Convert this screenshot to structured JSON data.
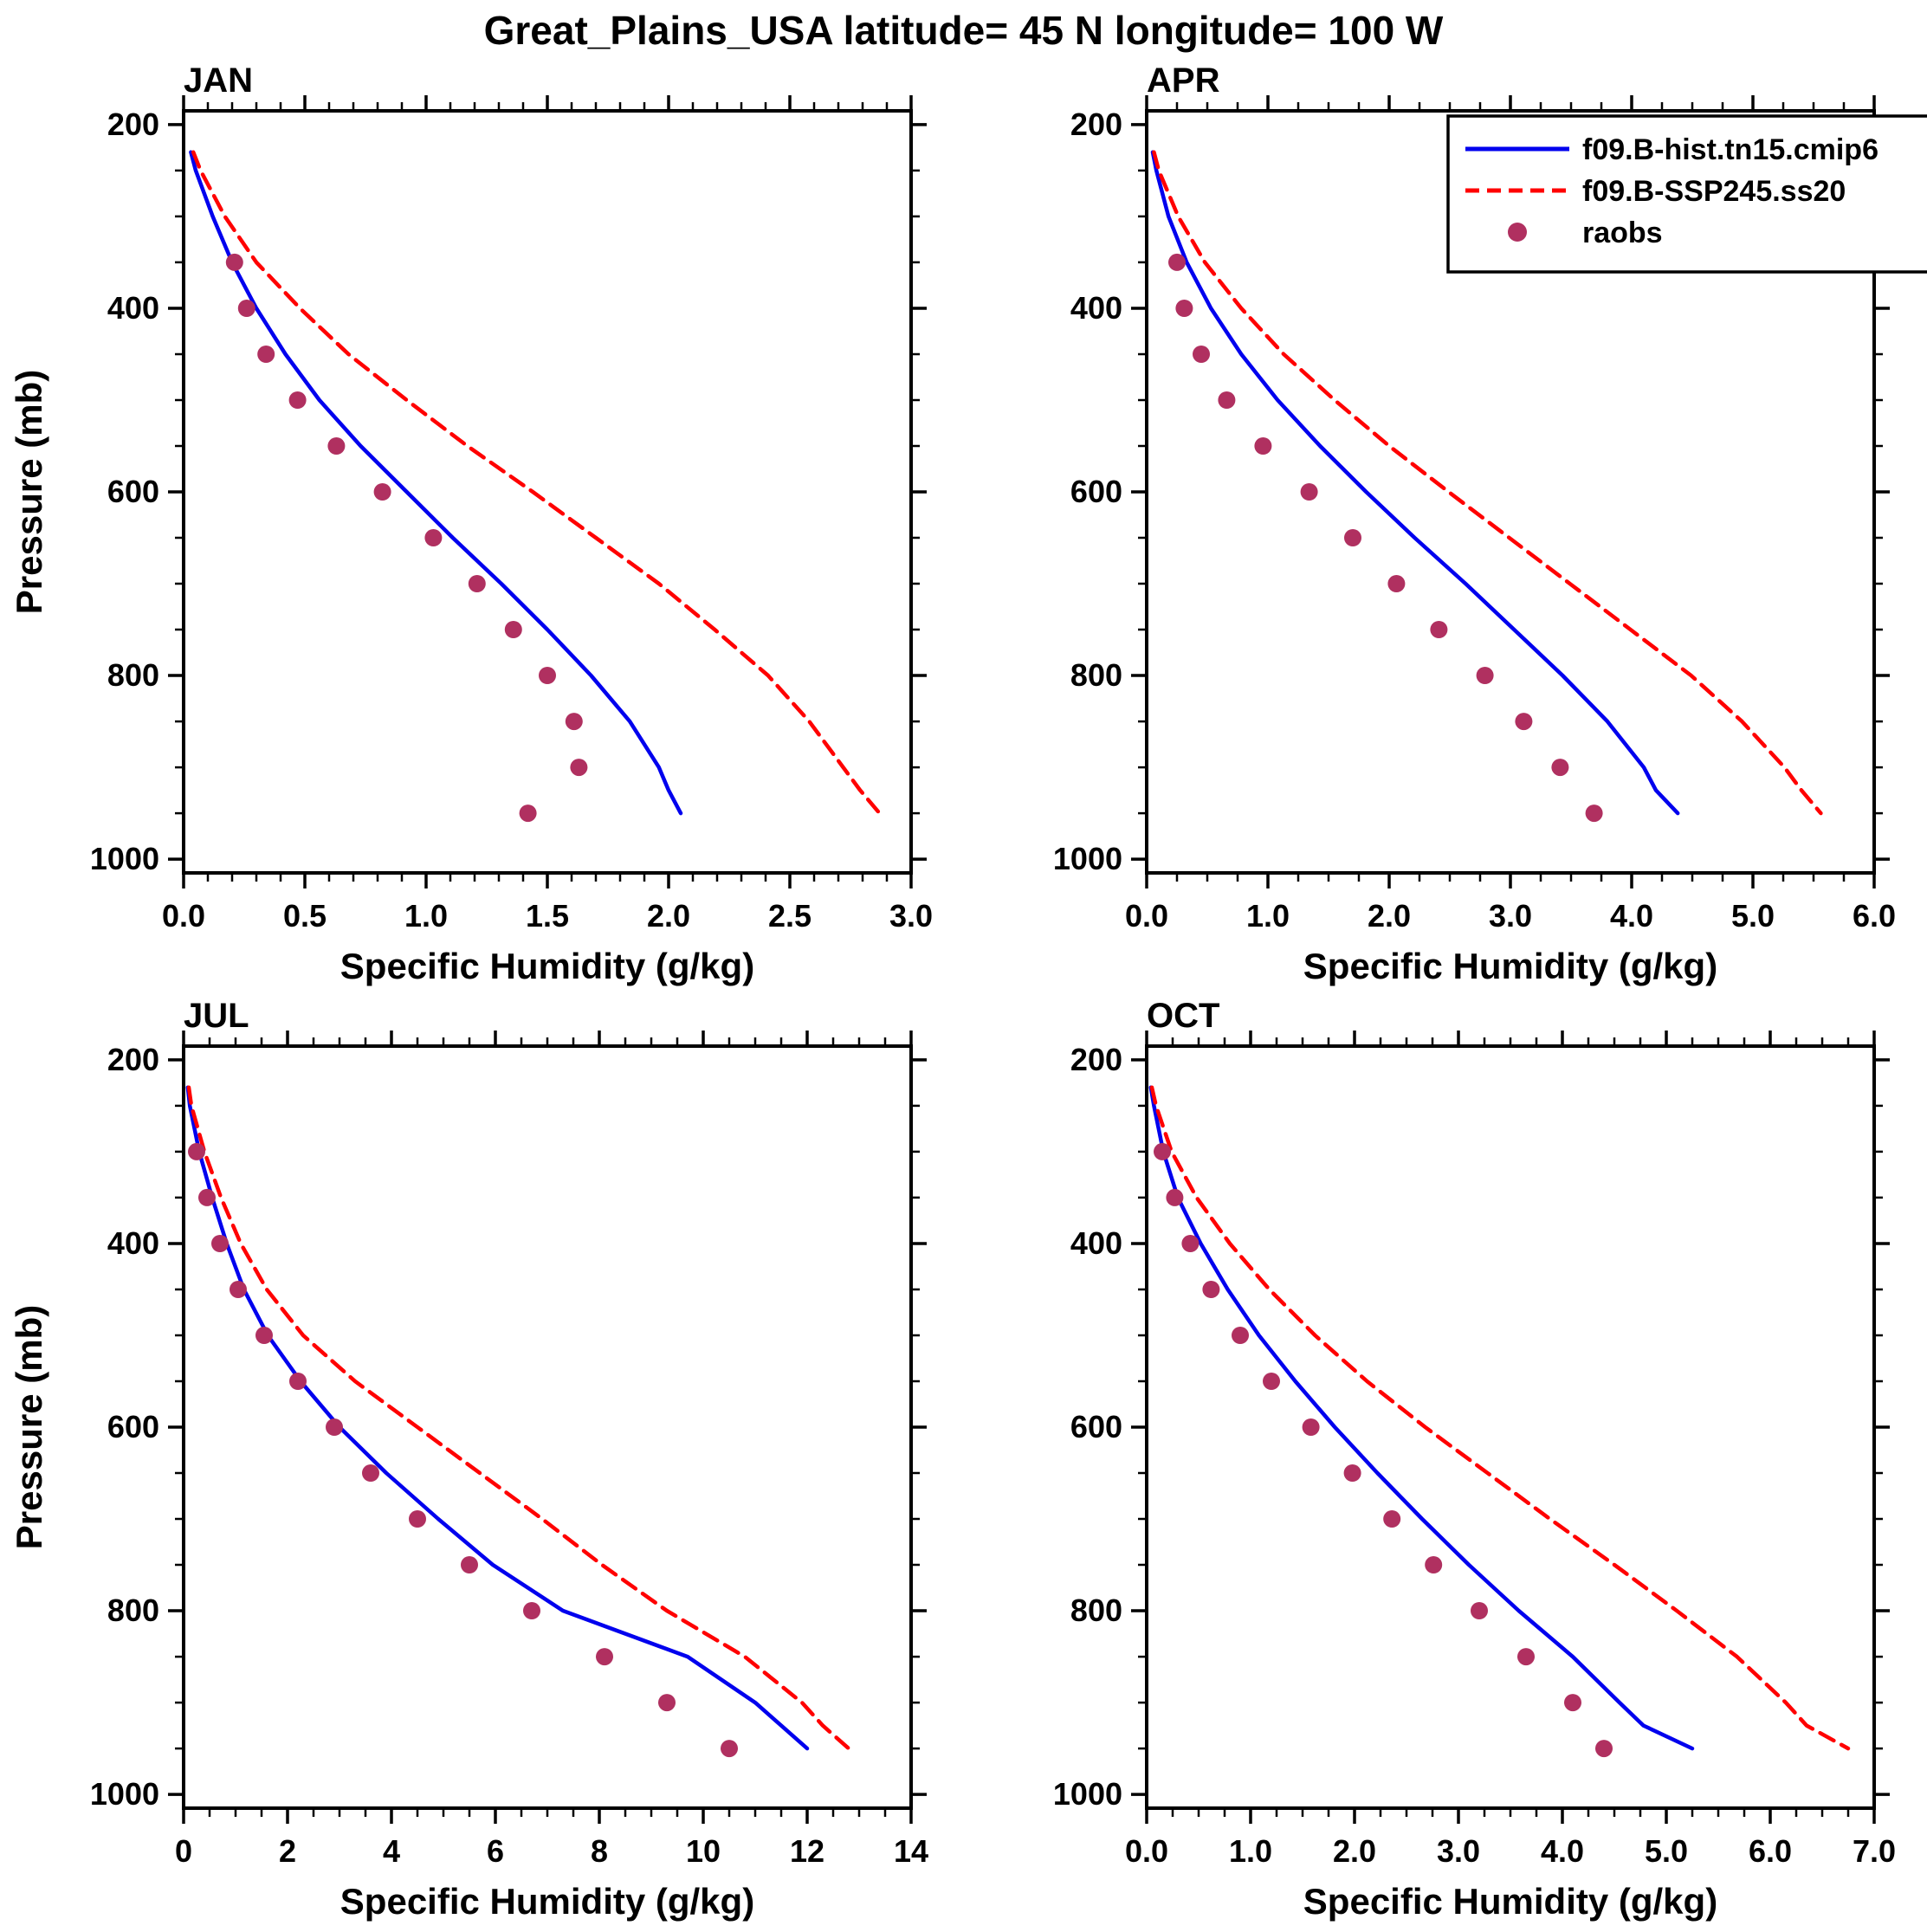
{
  "title": "Great_Plains_USA  latitude= 45 N longitude= 100 W",
  "colors": {
    "hist": "#0000ee",
    "ssp": "#ff0000",
    "raobs": "#b03060",
    "frame": "#000000"
  },
  "legend": {
    "entries": [
      {
        "label": "f09.B-hist.tn15.cmip6",
        "type": "line",
        "style": "solid",
        "color_key": "hist"
      },
      {
        "label": "f09.B-SSP245.ss20",
        "type": "line",
        "style": "dashed",
        "color_key": "ssp"
      },
      {
        "label": "raobs",
        "type": "dot",
        "color_key": "raobs"
      }
    ]
  },
  "chart_data": [
    {
      "type": "line",
      "title": "JAN",
      "xlabel": "Specific Humidity (g/kg)",
      "ylabel": "Pressure (mb)",
      "xlim": [
        0.0,
        3.0
      ],
      "xtick_step": 0.5,
      "xtick_decimals": 1,
      "xminor_step": 0.1,
      "ylim": [
        200,
        1000
      ],
      "ytick_step": 200,
      "ytick_decimals": 0,
      "yminor_step": 50,
      "show_ylabel": true,
      "show_legend": false,
      "pressure_levels": [
        230,
        250,
        300,
        350,
        400,
        450,
        500,
        550,
        600,
        650,
        700,
        750,
        800,
        850,
        900,
        925,
        950
      ],
      "series": [
        {
          "name": "f09.B-hist.tn15.cmip6",
          "style": "solid",
          "color_key": "hist",
          "values": [
            0.03,
            0.05,
            0.12,
            0.2,
            0.3,
            0.42,
            0.56,
            0.73,
            0.92,
            1.11,
            1.31,
            1.5,
            1.68,
            1.84,
            1.96,
            2.0,
            2.05
          ]
        },
        {
          "name": "f09.B-SSP245.ss20",
          "style": "dashed",
          "color_key": "ssp",
          "values": [
            0.04,
            0.07,
            0.17,
            0.3,
            0.48,
            0.68,
            0.92,
            1.17,
            1.44,
            1.7,
            1.96,
            2.19,
            2.41,
            2.58,
            2.72,
            2.79,
            2.87
          ]
        }
      ],
      "raobs": {
        "name": "raobs",
        "pressure": [
          350,
          400,
          450,
          500,
          550,
          600,
          650,
          700,
          750,
          800,
          850,
          900,
          950
        ],
        "values": [
          0.21,
          0.26,
          0.34,
          0.47,
          0.63,
          0.82,
          1.03,
          1.21,
          1.36,
          1.5,
          1.61,
          1.63,
          1.42
        ]
      }
    },
    {
      "type": "line",
      "title": "APR",
      "xlabel": "Specific Humidity (g/kg)",
      "ylabel": "Pressure (mb)",
      "xlim": [
        0.0,
        6.0
      ],
      "xtick_step": 1.0,
      "xtick_decimals": 1,
      "xminor_step": 0.25,
      "ylim": [
        200,
        1000
      ],
      "ytick_step": 200,
      "ytick_decimals": 0,
      "yminor_step": 50,
      "show_ylabel": false,
      "show_legend": true,
      "pressure_levels": [
        230,
        250,
        300,
        350,
        400,
        450,
        500,
        550,
        600,
        650,
        700,
        750,
        800,
        850,
        900,
        925,
        950
      ],
      "series": [
        {
          "name": "f09.B-hist.tn15.cmip6",
          "style": "solid",
          "color_key": "hist",
          "values": [
            0.05,
            0.08,
            0.18,
            0.33,
            0.53,
            0.78,
            1.08,
            1.43,
            1.81,
            2.21,
            2.63,
            3.03,
            3.43,
            3.8,
            4.1,
            4.2,
            4.38
          ]
        },
        {
          "name": "f09.B-SSP245.ss20",
          "style": "dashed",
          "color_key": "ssp",
          "values": [
            0.06,
            0.1,
            0.26,
            0.48,
            0.78,
            1.13,
            1.55,
            2.0,
            2.49,
            2.99,
            3.49,
            3.99,
            4.49,
            4.91,
            5.26,
            5.4,
            5.56
          ]
        }
      ],
      "raobs": {
        "name": "raobs",
        "pressure": [
          350,
          400,
          450,
          500,
          550,
          600,
          650,
          700,
          750,
          800,
          850,
          900,
          950
        ],
        "values": [
          0.25,
          0.31,
          0.45,
          0.66,
          0.96,
          1.34,
          1.7,
          2.06,
          2.41,
          2.79,
          3.11,
          3.41,
          3.69
        ]
      }
    },
    {
      "type": "line",
      "title": "JUL",
      "xlabel": "Specific Humidity (g/kg)",
      "ylabel": "Pressure (mb)",
      "xlim": [
        0,
        14
      ],
      "xtick_step": 2,
      "xtick_decimals": 0,
      "xminor_step": 0.5,
      "ylim": [
        200,
        1000
      ],
      "ytick_step": 200,
      "ytick_decimals": 0,
      "yminor_step": 50,
      "show_ylabel": true,
      "show_legend": false,
      "pressure_levels": [
        230,
        250,
        300,
        350,
        400,
        450,
        500,
        550,
        600,
        650,
        700,
        750,
        800,
        850,
        900,
        925,
        950
      ],
      "series": [
        {
          "name": "f09.B-hist.tn15.cmip6",
          "style": "solid",
          "color_key": "hist",
          "values": [
            0.08,
            0.12,
            0.3,
            0.55,
            0.83,
            1.16,
            1.62,
            2.25,
            3.0,
            3.9,
            4.9,
            5.95,
            7.3,
            9.7,
            11.0,
            11.5,
            12.0
          ]
        },
        {
          "name": "f09.B-SSP245.ss20",
          "style": "dashed",
          "color_key": "ssp",
          "values": [
            0.1,
            0.15,
            0.4,
            0.72,
            1.1,
            1.6,
            2.3,
            3.3,
            4.5,
            5.7,
            6.9,
            8.05,
            9.3,
            10.8,
            11.9,
            12.3,
            12.8
          ]
        }
      ],
      "raobs": {
        "name": "raobs",
        "pressure": [
          300,
          350,
          400,
          450,
          500,
          550,
          600,
          650,
          700,
          750,
          800,
          850,
          900,
          950
        ],
        "values": [
          0.25,
          0.45,
          0.7,
          1.05,
          1.55,
          2.2,
          2.9,
          3.6,
          4.5,
          5.5,
          6.7,
          8.1,
          9.3,
          10.5
        ]
      }
    },
    {
      "type": "line",
      "title": "OCT",
      "xlabel": "Specific Humidity (g/kg)",
      "ylabel": "Pressure (mb)",
      "xlim": [
        0.0,
        7.0
      ],
      "xtick_step": 1.0,
      "xtick_decimals": 1,
      "xminor_step": 0.25,
      "ylim": [
        200,
        1000
      ],
      "ytick_step": 200,
      "ytick_decimals": 0,
      "yminor_step": 50,
      "show_ylabel": false,
      "show_legend": false,
      "pressure_levels": [
        230,
        250,
        300,
        350,
        400,
        450,
        500,
        550,
        600,
        650,
        700,
        750,
        800,
        850,
        900,
        925,
        950
      ],
      "series": [
        {
          "name": "f09.B-hist.tn15.cmip6",
          "style": "solid",
          "color_key": "hist",
          "values": [
            0.04,
            0.07,
            0.16,
            0.3,
            0.52,
            0.78,
            1.08,
            1.43,
            1.81,
            2.22,
            2.65,
            3.1,
            3.58,
            4.1,
            4.55,
            4.78,
            5.25
          ]
        },
        {
          "name": "f09.B-SSP245.ss20",
          "style": "dashed",
          "color_key": "ssp",
          "values": [
            0.05,
            0.09,
            0.24,
            0.48,
            0.8,
            1.18,
            1.62,
            2.12,
            2.68,
            3.28,
            3.88,
            4.5,
            5.1,
            5.68,
            6.15,
            6.35,
            6.75
          ]
        }
      ],
      "raobs": {
        "name": "raobs",
        "pressure": [
          300,
          350,
          400,
          450,
          500,
          550,
          600,
          650,
          700,
          750,
          800,
          850,
          900,
          950
        ],
        "values": [
          0.15,
          0.27,
          0.42,
          0.62,
          0.9,
          1.2,
          1.58,
          1.98,
          2.36,
          2.76,
          3.2,
          3.65,
          4.1,
          4.4
        ]
      }
    }
  ]
}
